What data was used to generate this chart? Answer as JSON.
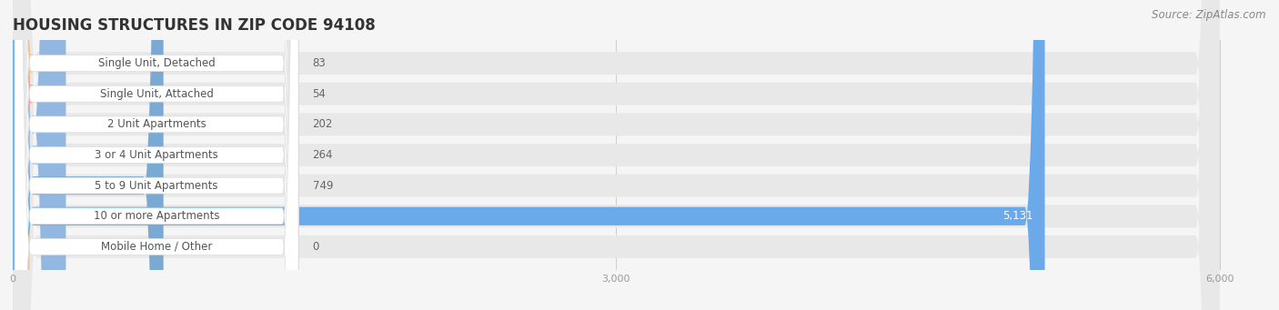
{
  "title": "HOUSING STRUCTURES IN ZIP CODE 94108",
  "source": "Source: ZipAtlas.com",
  "categories": [
    "Single Unit, Detached",
    "Single Unit, Attached",
    "2 Unit Apartments",
    "3 or 4 Unit Apartments",
    "5 to 9 Unit Apartments",
    "10 or more Apartments",
    "Mobile Home / Other"
  ],
  "values": [
    83,
    54,
    202,
    264,
    749,
    5131,
    0
  ],
  "bar_colors": [
    "#f5c18a",
    "#f0a0a0",
    "#92b8e2",
    "#92b8e2",
    "#7aaad4",
    "#6aaaea",
    "#c8a8d0"
  ],
  "xlim": [
    0,
    6200
  ],
  "x_max_data": 6000,
  "xticks": [
    0,
    3000,
    6000
  ],
  "background_color": "#f5f5f5",
  "row_bg_color": "#e8e8e8",
  "label_bg_color": "#ffffff",
  "title_fontsize": 12,
  "source_fontsize": 8.5,
  "label_fontsize": 8.5,
  "value_fontsize": 8.5,
  "bar_height": 0.6
}
